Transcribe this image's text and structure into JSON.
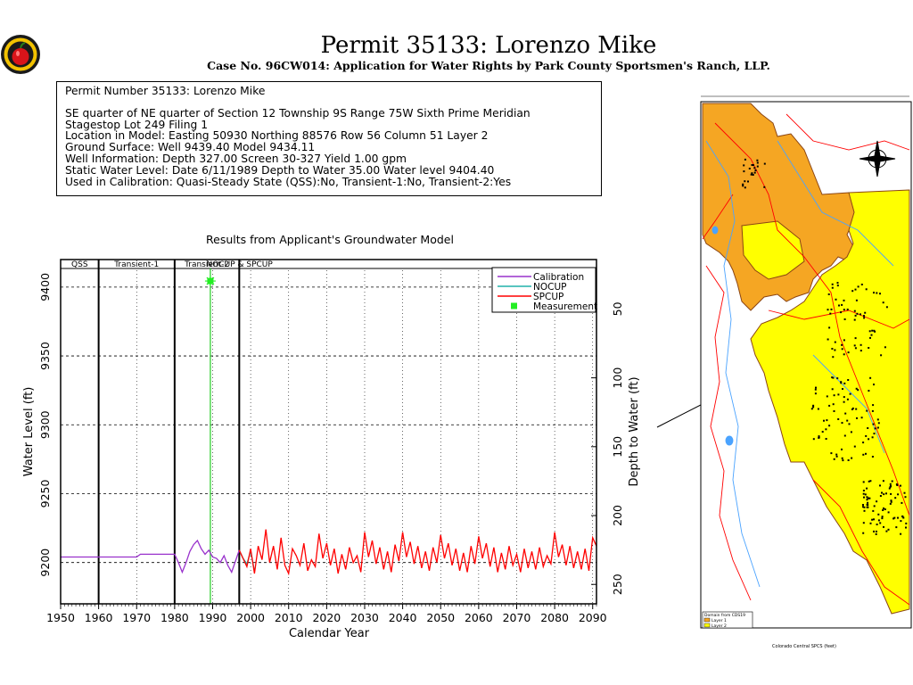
{
  "header": {
    "title": "Permit  35133:   Lorenzo  Mike",
    "subtitle": "Case No. 96CW014: Application for Water Rights by Park County Sportsmen's Ranch, LLP."
  },
  "info": {
    "line1": "Permit Number 35133: Lorenzo Mike",
    "line2": "SE quarter of NE quarter of Section 12 Township 9S Range 75W Sixth Prime Meridian",
    "line3": "Stagestop Lot 249 Filing 1",
    "line4": "Location in Model: Easting 50930 Northing  88576 Row   56 Column 51 Layer 2",
    "line5": "Ground Surface: Well   9439.40 Model   9434.11",
    "line6": "Well Information: Depth   327.00 Screen 30-327 Yield     1.00 gpm",
    "line7": "Static Water Level: Date   6/11/1989 Depth to Water     35.00 Water level  9404.40",
    "line8": "Used in Calibration: Quasi-Steady State (QSS):No, Transient-1:No, Transient-2:Yes"
  },
  "chart_data": {
    "type": "line",
    "title": "Results from Applicant's Groundwater Model",
    "xlabel": "Calendar Year",
    "ylabel": "Water Level (ft)",
    "ylabel_right": "Depth to Water (ft)",
    "xlim": [
      1950,
      2091
    ],
    "ylim": [
      9170,
      9420
    ],
    "ground_surface_model": 9434.11,
    "x_ticks": [
      "1950",
      "1960",
      "1970",
      "1980",
      "1990",
      "2000",
      "2010",
      "2020",
      "2030",
      "2040",
      "2050",
      "2060",
      "2070",
      "2080",
      "2090"
    ],
    "y_ticks": [
      "9200",
      "9250",
      "9300",
      "9350",
      "9400"
    ],
    "y2_ticks": [
      "50",
      "100",
      "150",
      "200",
      "250"
    ],
    "periods": [
      {
        "name": "QSS",
        "start": 1950,
        "end": 1960
      },
      {
        "name": "Transient-1",
        "start": 1960,
        "end": 1980
      },
      {
        "name": "Transient-2",
        "start": 1980,
        "end": 1997
      },
      {
        "name": "NOCUP  & SPCUP",
        "start": 1997,
        "end": 2091
      }
    ],
    "period_boundaries": [
      1960,
      1980,
      1997
    ],
    "measurement_line_x": 1989.4,
    "legend": {
      "position": "top-right",
      "items": [
        "Calibration",
        "NOCUP",
        "SPCUP",
        "Measurement"
      ]
    },
    "series": [
      {
        "name": "Calibration",
        "color": "#9932cc",
        "points": [
          [
            1950,
            9204
          ],
          [
            1960,
            9204
          ],
          [
            1970,
            9204
          ],
          [
            1971,
            9206
          ],
          [
            1972,
            9206
          ],
          [
            1980,
            9206
          ],
          [
            1981,
            9200
          ],
          [
            1982,
            9193
          ],
          [
            1983,
            9200
          ],
          [
            1984,
            9208
          ],
          [
            1985,
            9213
          ],
          [
            1986,
            9216
          ],
          [
            1987,
            9210
          ],
          [
            1988,
            9206
          ],
          [
            1989,
            9209
          ],
          [
            1990,
            9204
          ],
          [
            1991,
            9203
          ],
          [
            1992,
            9200
          ],
          [
            1993,
            9205
          ],
          [
            1994,
            9198
          ],
          [
            1995,
            9193
          ],
          [
            1996,
            9201
          ],
          [
            1997,
            9209
          ]
        ]
      },
      {
        "name": "NOCUP",
        "color": "#20b2aa",
        "points": [
          [
            1997,
            9209
          ],
          [
            1998,
            9203
          ],
          [
            1999,
            9199
          ],
          [
            2000,
            9208
          ],
          [
            2001,
            9194
          ]
        ]
      },
      {
        "name": "SPCUP",
        "color": "#ff0000",
        "points": [
          [
            1997,
            9209
          ],
          [
            1998,
            9203
          ],
          [
            1999,
            9197
          ],
          [
            2000,
            9210
          ],
          [
            2001,
            9192
          ],
          [
            2002,
            9212
          ],
          [
            2003,
            9202
          ],
          [
            2004,
            9224
          ],
          [
            2005,
            9200
          ],
          [
            2006,
            9212
          ],
          [
            2007,
            9195
          ],
          [
            2008,
            9218
          ],
          [
            2009,
            9198
          ],
          [
            2010,
            9192
          ],
          [
            2011,
            9210
          ],
          [
            2012,
            9205
          ],
          [
            2013,
            9198
          ],
          [
            2014,
            9214
          ],
          [
            2015,
            9194
          ],
          [
            2016,
            9202
          ],
          [
            2017,
            9197
          ],
          [
            2018,
            9221
          ],
          [
            2019,
            9203
          ],
          [
            2020,
            9214
          ],
          [
            2021,
            9198
          ],
          [
            2022,
            9210
          ],
          [
            2023,
            9192
          ],
          [
            2024,
            9206
          ],
          [
            2025,
            9195
          ],
          [
            2026,
            9211
          ],
          [
            2027,
            9200
          ],
          [
            2028,
            9205
          ],
          [
            2029,
            9193
          ],
          [
            2030,
            9222
          ],
          [
            2031,
            9204
          ],
          [
            2032,
            9216
          ],
          [
            2033,
            9199
          ],
          [
            2034,
            9211
          ],
          [
            2035,
            9195
          ],
          [
            2036,
            9208
          ],
          [
            2037,
            9193
          ],
          [
            2038,
            9213
          ],
          [
            2039,
            9201
          ],
          [
            2040,
            9222
          ],
          [
            2041,
            9204
          ],
          [
            2042,
            9215
          ],
          [
            2043,
            9199
          ],
          [
            2044,
            9212
          ],
          [
            2045,
            9196
          ],
          [
            2046,
            9208
          ],
          [
            2047,
            9194
          ],
          [
            2048,
            9211
          ],
          [
            2049,
            9200
          ],
          [
            2050,
            9220
          ],
          [
            2051,
            9203
          ],
          [
            2052,
            9214
          ],
          [
            2053,
            9198
          ],
          [
            2054,
            9210
          ],
          [
            2055,
            9194
          ],
          [
            2056,
            9207
          ],
          [
            2057,
            9193
          ],
          [
            2058,
            9212
          ],
          [
            2059,
            9199
          ],
          [
            2060,
            9219
          ],
          [
            2061,
            9203
          ],
          [
            2062,
            9214
          ],
          [
            2063,
            9197
          ],
          [
            2064,
            9211
          ],
          [
            2065,
            9193
          ],
          [
            2066,
            9207
          ],
          [
            2067,
            9195
          ],
          [
            2068,
            9212
          ],
          [
            2069,
            9198
          ],
          [
            2070,
            9206
          ],
          [
            2071,
            9193
          ],
          [
            2072,
            9210
          ],
          [
            2073,
            9196
          ],
          [
            2074,
            9208
          ],
          [
            2075,
            9195
          ],
          [
            2076,
            9211
          ],
          [
            2077,
            9197
          ],
          [
            2078,
            9205
          ],
          [
            2079,
            9199
          ],
          [
            2080,
            9222
          ],
          [
            2081,
            9204
          ],
          [
            2082,
            9213
          ],
          [
            2083,
            9198
          ],
          [
            2084,
            9212
          ],
          [
            2085,
            9196
          ],
          [
            2086,
            9208
          ],
          [
            2087,
            9195
          ],
          [
            2088,
            9210
          ],
          [
            2089,
            9194
          ],
          [
            2090,
            9218
          ],
          [
            2091,
            9212
          ]
        ]
      }
    ],
    "measurements": [
      {
        "x": 1989.4,
        "y": 9404.4
      }
    ]
  },
  "map": {
    "colors": {
      "layer1": "#f5a623",
      "layer2": "#ffff00",
      "river": "#ff0000",
      "stream": "#4aa3ff"
    },
    "legend_title": "Domain from CDS19",
    "legend_items": [
      "Layer 1",
      "Layer 2"
    ],
    "axis_label": "Colorado Central SPCS (feet)"
  }
}
